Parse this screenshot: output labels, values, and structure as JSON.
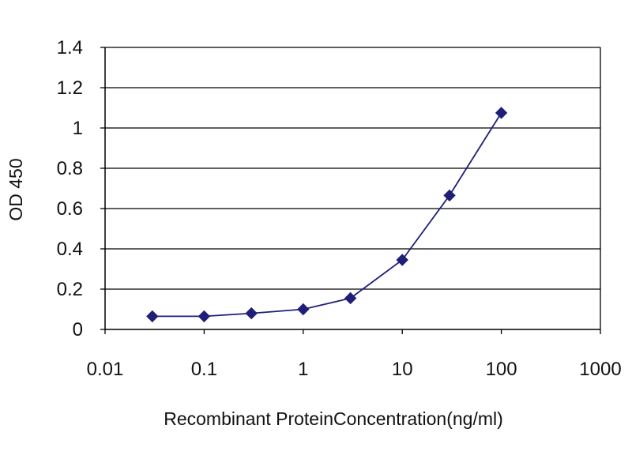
{
  "chart_data": {
    "type": "line",
    "title": "",
    "xlabel": "Recombinant ProteinConcentration(ng/ml)",
    "ylabel": "OD 450",
    "x_scale": "log",
    "xlim": [
      0.01,
      1000
    ],
    "ylim": [
      0,
      1.4
    ],
    "x_ticks": [
      "0.01",
      "0.1",
      "1",
      "10",
      "100",
      "1000"
    ],
    "y_ticks": [
      "0",
      "0.2",
      "0.4",
      "0.6",
      "0.8",
      "1",
      "1.2",
      "1.4"
    ],
    "grid": "horizontal",
    "legend": "none",
    "series": [
      {
        "x": [
          0.03,
          0.1,
          0.3,
          1,
          3,
          10,
          30,
          100
        ],
        "y": [
          0.065,
          0.065,
          0.08,
          0.1,
          0.155,
          0.345,
          0.665,
          1.075
        ]
      }
    ],
    "colors": {
      "series": "#1f1f7a",
      "grid": "#000000",
      "plot_background": "#ffffff"
    }
  }
}
